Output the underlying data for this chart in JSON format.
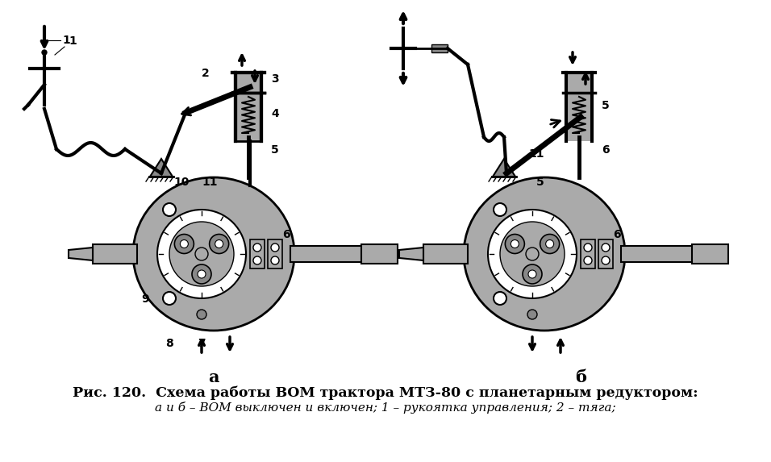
{
  "title_line1": "Рис. 120.  Схема работы ВОМ трактора МТЗ-80 с планетарным редуктором:",
  "title_line2": "а и б – ВОМ выключен и включен; 1 – рукоятка управления; 2 – тяга;",
  "bg_color": "#ffffff",
  "label_a": "а",
  "label_b": "б",
  "title_fontsize": 12.5,
  "subtitle_fontsize": 11,
  "label_fontsize": 13
}
